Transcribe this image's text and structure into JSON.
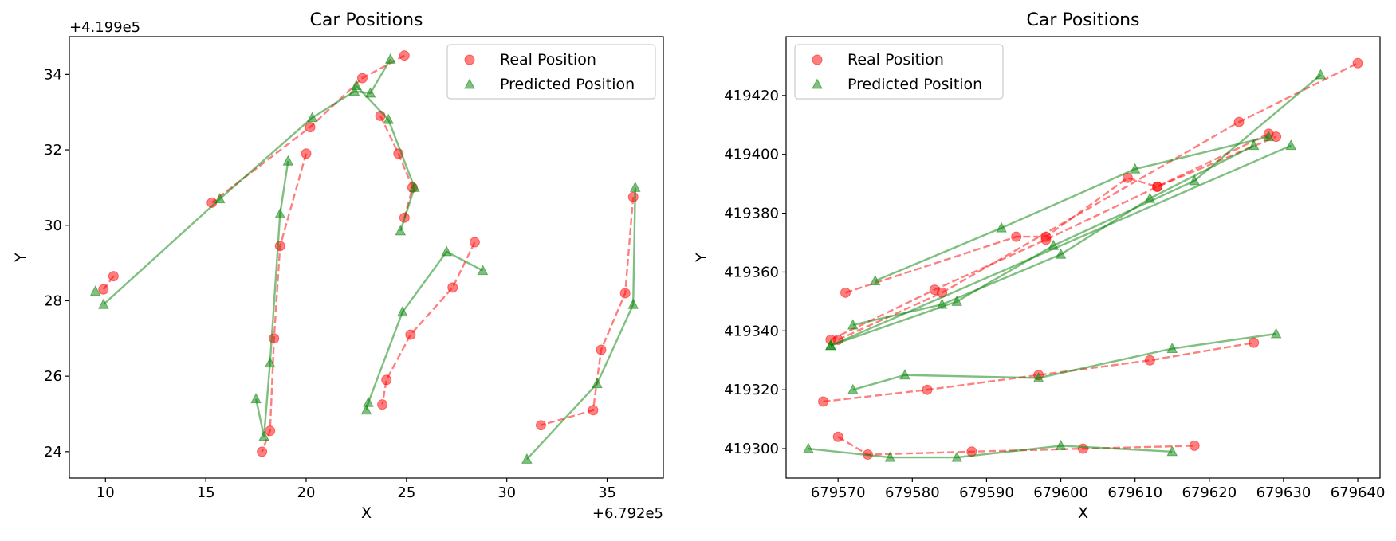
{
  "chart_data": [
    {
      "type": "line",
      "title": "Car Positions",
      "xlabel": "X",
      "ylabel": "Y",
      "x_offset_label": "+6.792e5",
      "y_offset_label": "+4.199e5",
      "xlim": [
        8.2,
        37.8
      ],
      "ylim": [
        23.3,
        35.0
      ],
      "xticks": [
        10,
        15,
        20,
        25,
        30,
        35
      ],
      "yticks": [
        24,
        26,
        28,
        30,
        32,
        34
      ],
      "grid": false,
      "legend": "top-right",
      "series": [
        {
          "name": "Real Position",
          "color": "#ff0000",
          "marker": "circle",
          "tracks": [
            [
              [
                10.4,
                28.65
              ],
              [
                9.9,
                28.3
              ]
            ],
            [
              [
                24.9,
                34.5
              ],
              [
                22.8,
                33.9
              ],
              [
                20.2,
                32.6
              ],
              [
                15.3,
                30.6
              ]
            ],
            [
              [
                23.7,
                32.9
              ],
              [
                24.6,
                31.9
              ],
              [
                25.3,
                31.0
              ],
              [
                24.9,
                30.2
              ]
            ],
            [
              [
                20.0,
                31.9
              ],
              [
                18.7,
                29.45
              ],
              [
                18.4,
                27.0
              ],
              [
                18.2,
                24.55
              ],
              [
                17.8,
                24.0
              ]
            ],
            [
              [
                28.4,
                29.55
              ],
              [
                27.3,
                28.35
              ],
              [
                25.2,
                27.1
              ],
              [
                24.0,
                25.9
              ],
              [
                23.8,
                25.25
              ]
            ],
            [
              [
                36.3,
                30.75
              ],
              [
                35.9,
                28.2
              ],
              [
                34.7,
                26.7
              ],
              [
                34.3,
                25.1
              ],
              [
                31.7,
                24.7
              ]
            ]
          ]
        },
        {
          "name": "Predicted Position",
          "color": "#008000",
          "marker": "triangle",
          "tracks": [
            [
              [
                9.5,
                28.25
              ]
            ],
            [
              [
                24.2,
                34.4
              ],
              [
                23.2,
                33.5
              ],
              [
                22.4,
                33.55
              ],
              [
                20.3,
                32.85
              ],
              [
                15.7,
                30.7
              ],
              [
                9.9,
                27.9
              ]
            ],
            [
              [
                22.5,
                33.7
              ],
              [
                24.1,
                32.8
              ],
              [
                25.4,
                31.0
              ],
              [
                24.7,
                29.85
              ]
            ],
            [
              [
                19.1,
                31.7
              ],
              [
                18.7,
                30.3
              ],
              [
                18.2,
                26.35
              ],
              [
                17.9,
                24.4
              ],
              [
                17.5,
                25.4
              ]
            ],
            [
              [
                28.8,
                28.8
              ],
              [
                27.0,
                29.3
              ],
              [
                24.8,
                27.7
              ],
              [
                23.1,
                25.3
              ],
              [
                23.0,
                25.1
              ]
            ],
            [
              [
                36.4,
                31.0
              ],
              [
                36.3,
                27.9
              ],
              [
                34.5,
                25.8
              ],
              [
                31.0,
                23.8
              ]
            ]
          ]
        }
      ]
    },
    {
      "type": "line",
      "title": "Car Positions",
      "xlabel": "X",
      "ylabel": "Y",
      "xlim": [
        679563,
        679643
      ],
      "ylim": [
        419290,
        419440
      ],
      "xticks": [
        679570,
        679580,
        679590,
        679600,
        679610,
        679620,
        679630,
        679640
      ],
      "yticks": [
        419300,
        419320,
        419340,
        419360,
        419380,
        419400,
        419420
      ],
      "grid": false,
      "legend": "top-left",
      "series": [
        {
          "name": "Real Position",
          "color": "#ff0000",
          "marker": "circle",
          "tracks": [
            [
              [
                679571,
                419353
              ],
              [
                679594,
                419372
              ],
              [
                679598,
                419372
              ],
              [
                679609,
                419392
              ],
              [
                679613,
                419389
              ],
              [
                679628,
                419407
              ]
            ],
            [
              [
                679569,
                419337
              ],
              [
                679583,
                419354
              ],
              [
                679598,
                419371
              ],
              [
                679613,
                419389
              ],
              [
                679629,
                419406
              ]
            ],
            [
              [
                679570,
                419337
              ],
              [
                679584,
                419353
              ],
              [
                679624,
                419411
              ],
              [
                679640,
                419431
              ]
            ],
            [
              [
                679568,
                419316
              ],
              [
                679582,
                419320
              ],
              [
                679597,
                419325
              ],
              [
                679612,
                419330
              ],
              [
                679626,
                419336
              ]
            ],
            [
              [
                679570,
                419304
              ],
              [
                679574,
                419298
              ],
              [
                679588,
                419299
              ],
              [
                679603,
                419300
              ],
              [
                679618,
                419301
              ]
            ]
          ]
        },
        {
          "name": "Predicted Position",
          "color": "#008000",
          "marker": "triangle",
          "tracks": [
            [
              [
                679575,
                419357
              ],
              [
                679592,
                419375
              ],
              [
                679610,
                419395
              ],
              [
                679628,
                419406
              ]
            ],
            [
              [
                679569,
                419335
              ],
              [
                679586,
                419350
              ],
              [
                679599,
                419369
              ],
              [
                679618,
                419391
              ],
              [
                679635,
                419427
              ]
            ],
            [
              [
                679572,
                419342
              ],
              [
                679584,
                419349
              ],
              [
                679600,
                419366
              ],
              [
                679612,
                419385
              ],
              [
                679626,
                419403
              ]
            ],
            [
              [
                679569,
                419335
              ],
              [
                679631,
                419403
              ]
            ],
            [
              [
                679572,
                419320
              ],
              [
                679579,
                419325
              ],
              [
                679597,
                419324
              ],
              [
                679615,
                419334
              ],
              [
                679629,
                419339
              ]
            ],
            [
              [
                679566,
                419300
              ],
              [
                679577,
                419297
              ],
              [
                679586,
                419297
              ],
              [
                679600,
                419301
              ],
              [
                679615,
                419299
              ]
            ]
          ]
        }
      ]
    }
  ]
}
